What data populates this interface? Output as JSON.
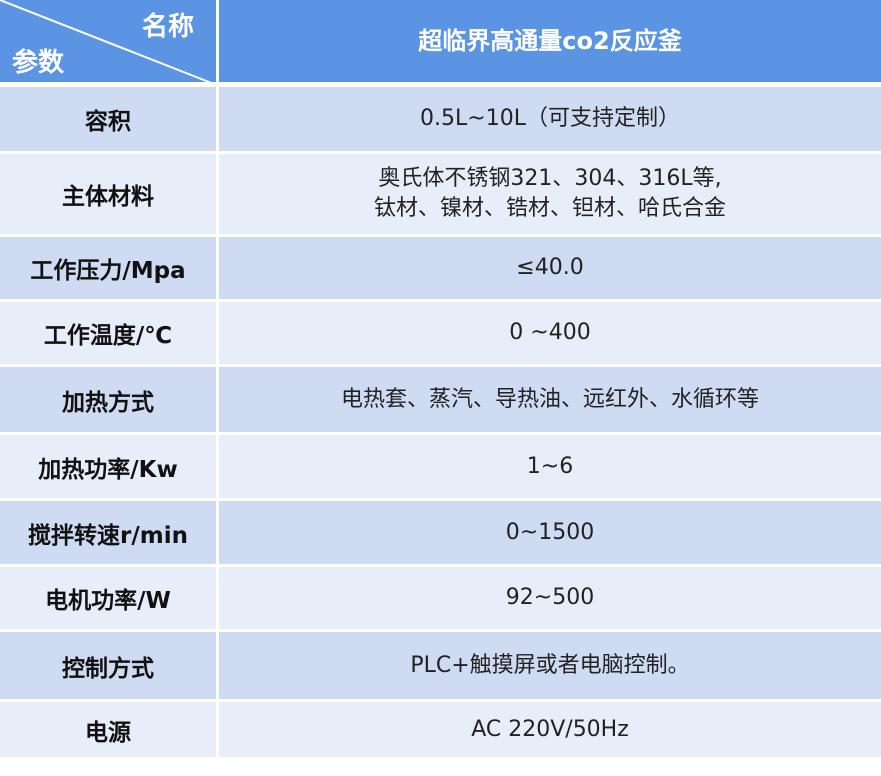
{
  "header": {
    "name_label": "名称",
    "param_label": "参数",
    "product": "超临界高通量co2反应釜"
  },
  "rows": [
    {
      "param": "容积",
      "value": [
        "0.5L~10L（可支持定制）"
      ]
    },
    {
      "param": "主体材料",
      "value": [
        "奥氏体不锈钢321、304、316L等,",
        "钛材、镍材、锆材、钽材、哈氏合金"
      ]
    },
    {
      "param": "工作压力/Mpa",
      "value": [
        "≤40.0"
      ]
    },
    {
      "param": "工作温度/℃",
      "value": [
        "0 ~400"
      ]
    },
    {
      "param": "加热方式",
      "value": [
        "电热套、蒸汽、导热油、远红外、水循环等"
      ]
    },
    {
      "param": "加热功率/Kw",
      "value": [
        "1~6"
      ]
    },
    {
      "param": "搅拌转速r/min",
      "value": [
        "0~1500"
      ]
    },
    {
      "param": "电机功率/W",
      "value": [
        "92~500"
      ]
    },
    {
      "param": "控制方式",
      "value": [
        "PLC+触摸屏或者电脑控制。"
      ]
    },
    {
      "param": "电源",
      "value": [
        "AC 220V/50Hz"
      ]
    }
  ],
  "colors": {
    "header": "#5b94e2",
    "row_dark": "#cfdbf3",
    "row_light": "#e8eef9"
  }
}
